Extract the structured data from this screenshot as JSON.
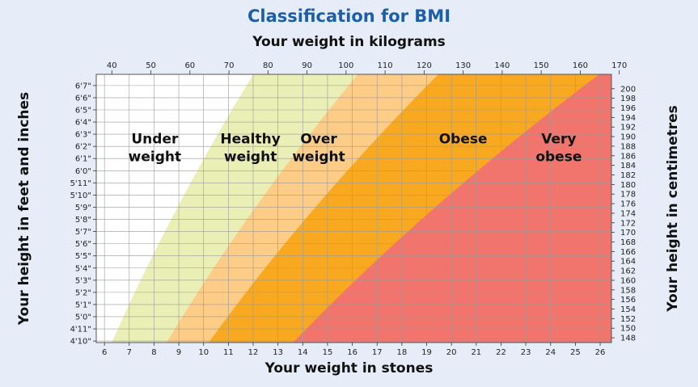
{
  "chart_data": {
    "type": "area",
    "title": "Classification for BMI",
    "top_xlabel": "Your weight in kilograms",
    "bottom_xlabel": "Your weight in stones",
    "left_ylabel": "Your height in feet and inches",
    "right_ylabel": "Your height in centimetres",
    "xlim_kg": [
      36,
      168
    ],
    "ylim_cm": [
      147,
      203
    ],
    "grid": true,
    "kg_ticks": [
      40,
      50,
      60,
      70,
      80,
      90,
      100,
      110,
      120,
      130,
      140,
      150,
      160,
      170
    ],
    "stone_ticks": [
      6,
      7,
      8,
      9,
      10,
      11,
      12,
      13,
      14,
      15,
      16,
      17,
      18,
      19,
      20,
      21,
      22,
      23,
      24,
      25,
      26
    ],
    "cm_ticks": [
      148,
      150,
      152,
      154,
      156,
      158,
      160,
      162,
      164,
      166,
      168,
      170,
      172,
      174,
      176,
      178,
      180,
      182,
      184,
      186,
      188,
      190,
      192,
      194,
      196,
      198,
      200
    ],
    "ftin_ticks": [
      "4'10\"",
      "4'11\"",
      "5'0\"",
      "5'1\"",
      "5'2\"",
      "5'3\"",
      "5'4\"",
      "5'5\"",
      "5'6\"",
      "5'7\"",
      "5'8\"",
      "5'9\"",
      "5'10\"",
      "5'11\"",
      "6'0\"",
      "6'1\"",
      "6'2\"",
      "6'3\"",
      "6'4\"",
      "6'5\"",
      "6'6\"",
      "6'7\""
    ],
    "ftin_ticks_cm": [
      147.32,
      149.86,
      152.4,
      154.94,
      157.48,
      160.02,
      162.56,
      165.1,
      167.64,
      170.18,
      172.72,
      175.26,
      177.8,
      180.34,
      182.88,
      185.42,
      187.96,
      190.5,
      193.04,
      195.58,
      198.12,
      200.66
    ],
    "categories": [
      {
        "name": "Under weight",
        "bmi_range": [
          0,
          18.5
        ],
        "color": "#ffffff",
        "label_lines": [
          "Under",
          "weight"
        ],
        "label_at": {
          "kg": 51,
          "cm": 188.6
        }
      },
      {
        "name": "Healthy weight",
        "bmi_range": [
          18.5,
          25
        ],
        "color": "#eaefb6",
        "label_lines": [
          "Healthy",
          "weight"
        ],
        "label_at": {
          "kg": 75.5,
          "cm": 188.6
        }
      },
      {
        "name": "Over weight",
        "bmi_range": [
          25,
          30
        ],
        "color": "#fdcc86",
        "label_lines": [
          "Over",
          "weight"
        ],
        "label_at": {
          "kg": 93,
          "cm": 188.6
        }
      },
      {
        "name": "Obese",
        "bmi_range": [
          30,
          40
        ],
        "color": "#f9a91f",
        "label_lines": [
          "Obese"
        ],
        "label_at": {
          "kg": 130,
          "cm": 188.6
        }
      },
      {
        "name": "Very obese",
        "bmi_range": [
          40,
          100
        ],
        "color": "#f2756d",
        "label_lines": [
          "Very",
          "obese"
        ],
        "label_at": {
          "kg": 154.5,
          "cm": 188.6
        }
      }
    ]
  }
}
